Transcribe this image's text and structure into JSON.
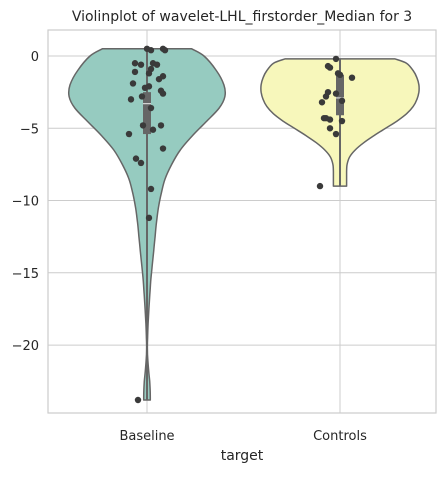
{
  "chart_data": {
    "type": "violin",
    "title": "Violinplot of wavelet-LHL_firstorder_Median for 3",
    "xlabel": "target",
    "ylabel": "",
    "categories": [
      "Baseline",
      "Controls"
    ],
    "ylim": [
      -24.7,
      1.8
    ],
    "yticks": [
      0,
      -5,
      -10,
      -15,
      -20
    ],
    "ytick_labels": [
      "0",
      "−5",
      "−10",
      "−15",
      "−20"
    ],
    "grid": true,
    "colors": {
      "Baseline": "#96cbc0",
      "Controls": "#f7f7bb",
      "outline": "#666666",
      "points": "#3a3a3a",
      "box": "#666666",
      "grid": "#cccccc"
    },
    "violins": [
      {
        "category": "Baseline",
        "range": [
          -23.8,
          0.5
        ],
        "quartiles": [
          -5.4,
          -3.3,
          -2.5
        ],
        "profile": [
          [
            0.5,
            0.47
          ],
          [
            0.0,
            0.6
          ],
          [
            -1.0,
            0.73
          ],
          [
            -2.0,
            0.81
          ],
          [
            -2.8,
            0.82
          ],
          [
            -3.6,
            0.76
          ],
          [
            -4.5,
            0.63
          ],
          [
            -5.5,
            0.48
          ],
          [
            -6.5,
            0.35
          ],
          [
            -7.5,
            0.26
          ],
          [
            -8.5,
            0.19
          ],
          [
            -9.5,
            0.15
          ],
          [
            -10.5,
            0.12
          ],
          [
            -11.5,
            0.1
          ],
          [
            -12.5,
            0.085
          ],
          [
            -13.5,
            0.07
          ],
          [
            -14.5,
            0.055
          ],
          [
            -15.5,
            0.04
          ],
          [
            -16.5,
            0.03
          ],
          [
            -17.5,
            0.02
          ],
          [
            -18.5,
            0.012
          ],
          [
            -19.5,
            0.006
          ],
          [
            -20.3,
            0.004
          ],
          [
            -21.0,
            0.008
          ],
          [
            -21.8,
            0.018
          ],
          [
            -22.5,
            0.028
          ],
          [
            -23.2,
            0.034
          ],
          [
            -23.8,
            0.035
          ]
        ],
        "points": [
          [
            0.5,
            0.0
          ],
          [
            0.4,
            0.04
          ],
          [
            0.5,
            0.16
          ],
          [
            0.4,
            0.18
          ],
          [
            -0.5,
            -0.12
          ],
          [
            -0.6,
            -0.06
          ],
          [
            -0.5,
            0.06
          ],
          [
            -0.6,
            0.1
          ],
          [
            -0.9,
            0.04
          ],
          [
            -1.1,
            -0.12
          ],
          [
            -1.2,
            0.02
          ],
          [
            -1.4,
            0.16
          ],
          [
            -1.6,
            0.12
          ],
          [
            -1.9,
            -0.14
          ],
          [
            -2.1,
            0.02
          ],
          [
            -2.2,
            -0.02
          ],
          [
            -2.4,
            0.14
          ],
          [
            -2.6,
            0.16
          ],
          [
            -2.8,
            -0.05
          ],
          [
            -3.0,
            -0.16
          ],
          [
            -3.6,
            0.04
          ],
          [
            -4.8,
            -0.04
          ],
          [
            -4.8,
            0.14
          ],
          [
            -5.1,
            0.06
          ],
          [
            -5.4,
            -0.18
          ],
          [
            -6.4,
            0.16
          ],
          [
            -7.1,
            -0.11
          ],
          [
            -7.4,
            -0.06
          ],
          [
            -9.2,
            0.04
          ],
          [
            -11.2,
            0.02
          ],
          [
            -23.8,
            -0.09
          ]
        ]
      },
      {
        "category": "Controls",
        "range": [
          -9.0,
          -0.2
        ],
        "quartiles": [
          -4.1,
          -2.9,
          -1.3
        ],
        "profile": [
          [
            -0.2,
            0.58
          ],
          [
            -0.5,
            0.7
          ],
          [
            -1.0,
            0.77
          ],
          [
            -1.5,
            0.81
          ],
          [
            -2.0,
            0.83
          ],
          [
            -2.5,
            0.83
          ],
          [
            -3.0,
            0.81
          ],
          [
            -3.5,
            0.77
          ],
          [
            -4.0,
            0.7
          ],
          [
            -4.5,
            0.6
          ],
          [
            -5.0,
            0.48
          ],
          [
            -5.5,
            0.36
          ],
          [
            -6.0,
            0.25
          ],
          [
            -6.5,
            0.16
          ],
          [
            -7.0,
            0.1
          ],
          [
            -7.5,
            0.075
          ],
          [
            -8.0,
            0.07
          ],
          [
            -8.5,
            0.07
          ],
          [
            -9.0,
            0.07
          ]
        ],
        "points": [
          [
            -0.2,
            -0.04
          ],
          [
            -0.7,
            -0.12
          ],
          [
            -0.8,
            -0.1
          ],
          [
            -1.2,
            -0.02
          ],
          [
            -1.3,
            0.0
          ],
          [
            -1.5,
            0.12
          ],
          [
            -2.5,
            -0.12
          ],
          [
            -2.6,
            -0.04
          ],
          [
            -2.8,
            -0.14
          ],
          [
            -3.1,
            0.02
          ],
          [
            -3.2,
            -0.18
          ],
          [
            -4.3,
            -0.16
          ],
          [
            -4.3,
            -0.14
          ],
          [
            -4.4,
            -0.1
          ],
          [
            -4.5,
            0.02
          ],
          [
            -5.0,
            -0.1
          ],
          [
            -5.4,
            -0.04
          ],
          [
            -9.0,
            -0.2
          ]
        ]
      }
    ]
  }
}
